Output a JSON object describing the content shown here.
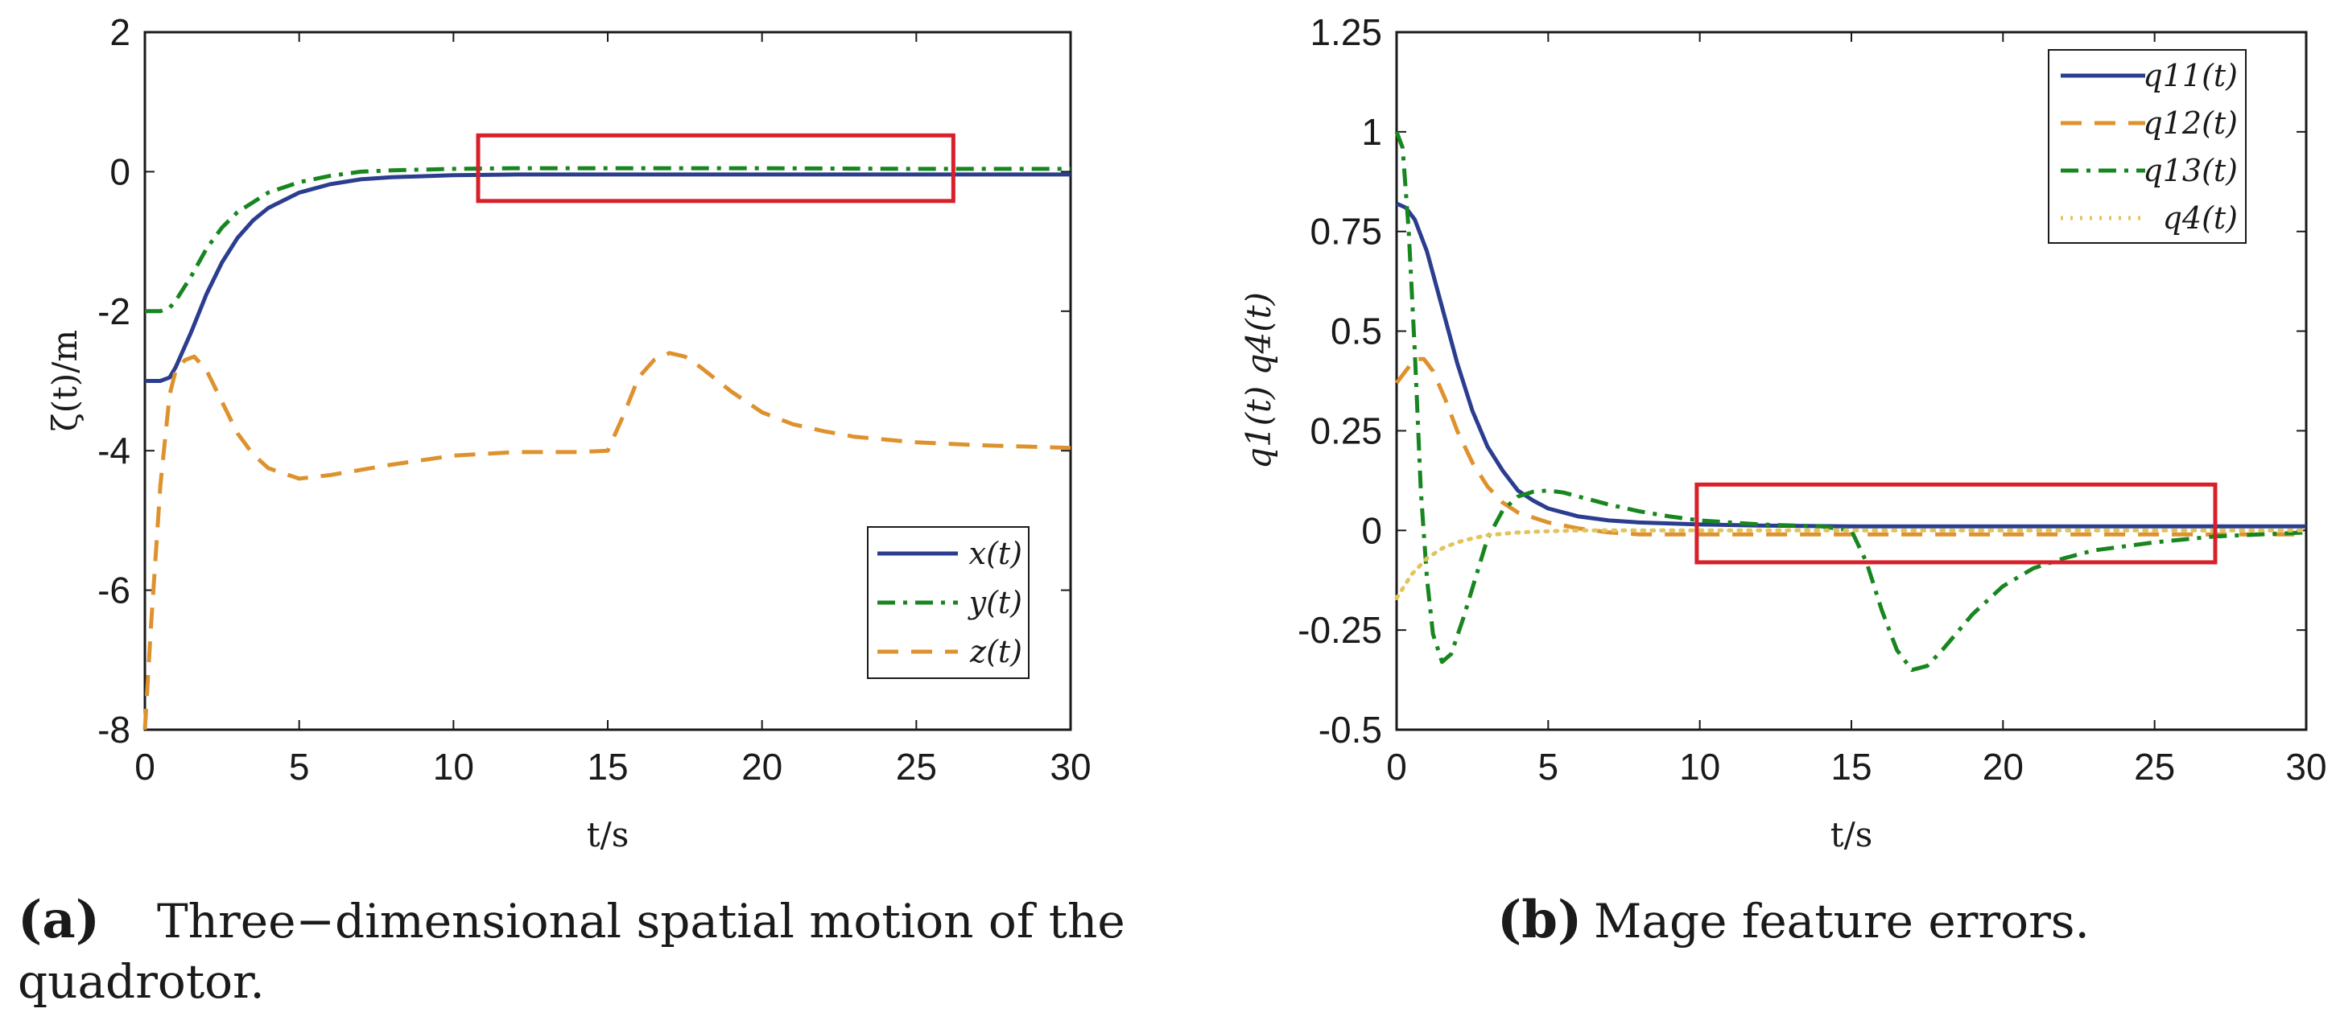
{
  "colors": {
    "blue": "#2b3d8f",
    "green": "#17861f",
    "orange": "#de922e",
    "yellow": "#e1c45c",
    "red": "#d9202a",
    "axis": "#1a1a1a"
  },
  "chart_data": [
    {
      "type": "line",
      "panel_letter": "(a)",
      "caption_line1": "Three−dimensional spatial motion of the",
      "caption_line2": "quadrotor.",
      "xlabel": "t/s",
      "ylabel": "ζ(t)/m",
      "xlim": [
        0,
        30
      ],
      "ylim": [
        -8,
        2
      ],
      "xticks": [
        0,
        5,
        10,
        15,
        20,
        25,
        30
      ],
      "yticks": [
        -8,
        -6,
        -4,
        -2,
        0,
        2
      ],
      "ytick_labels": [
        "-8",
        "-6",
        "-4",
        "-2",
        "0",
        "2"
      ],
      "highlight_box": {
        "x": [
          10.8,
          26.2
        ],
        "y": [
          -0.42,
          0.52
        ]
      },
      "legend_position": "lower-right",
      "series": [
        {
          "name": "x(t)",
          "style": "solid",
          "color": "#2b3d8f",
          "x": [
            0,
            0.5,
            0.8,
            1.0,
            1.5,
            2,
            2.5,
            3,
            3.5,
            4,
            5,
            6,
            7,
            8,
            10,
            12,
            15,
            20,
            25,
            30
          ],
          "y": [
            -3.0,
            -3.0,
            -2.95,
            -2.8,
            -2.3,
            -1.75,
            -1.3,
            -0.95,
            -0.7,
            -0.52,
            -0.3,
            -0.18,
            -0.11,
            -0.08,
            -0.05,
            -0.04,
            -0.04,
            -0.04,
            -0.04,
            -0.04
          ]
        },
        {
          "name": "y(t)",
          "style": "dashdot",
          "color": "#17861f",
          "x": [
            0,
            0.5,
            0.8,
            1.0,
            1.5,
            2,
            2.5,
            3,
            4,
            5,
            6,
            7,
            8,
            10,
            12,
            15,
            20,
            25,
            30
          ],
          "y": [
            -2.0,
            -2.0,
            -1.95,
            -1.85,
            -1.5,
            -1.1,
            -0.8,
            -0.58,
            -0.3,
            -0.15,
            -0.06,
            0.0,
            0.02,
            0.04,
            0.05,
            0.05,
            0.05,
            0.04,
            0.04
          ]
        },
        {
          "name": "z(t)",
          "style": "dashed",
          "color": "#de922e",
          "x": [
            0,
            0.2,
            0.5,
            0.8,
            1.0,
            1.3,
            1.6,
            2.0,
            2.5,
            3.0,
            3.5,
            4.0,
            5.0,
            6.0,
            8.0,
            10.0,
            12.0,
            14.0,
            15.0,
            15.5,
            16.0,
            16.5,
            17.0,
            17.5,
            18.0,
            19.0,
            20.0,
            21.0,
            22.0,
            23.0,
            25.0,
            27.0,
            30.0
          ],
          "y": [
            -8.0,
            -6.5,
            -4.5,
            -3.2,
            -2.85,
            -2.7,
            -2.65,
            -2.85,
            -3.3,
            -3.75,
            -4.05,
            -4.25,
            -4.4,
            -4.35,
            -4.2,
            -4.07,
            -4.02,
            -4.02,
            -4.0,
            -3.5,
            -2.95,
            -2.7,
            -2.6,
            -2.65,
            -2.8,
            -3.15,
            -3.45,
            -3.62,
            -3.72,
            -3.8,
            -3.88,
            -3.92,
            -3.96
          ]
        }
      ]
    },
    {
      "type": "line",
      "panel_letter": "(b)",
      "caption_line1": "Mage feature errors.",
      "xlabel": "t/s",
      "ylabel": "q1(t)   q4(t)",
      "xlim": [
        0,
        30
      ],
      "ylim": [
        -0.5,
        1.25
      ],
      "xticks": [
        0,
        5,
        10,
        15,
        20,
        25,
        30
      ],
      "yticks": [
        -0.5,
        -0.25,
        0,
        0.25,
        0.5,
        0.75,
        1,
        1.25
      ],
      "ytick_labels": [
        "-0.5",
        "-0.25",
        "0",
        "0.25",
        "0.5",
        "0.75",
        "1",
        "1.25"
      ],
      "highlight_box": {
        "x": [
          9.9,
          27.0
        ],
        "y": [
          -0.08,
          0.115
        ]
      },
      "legend_position": "top-right",
      "series": [
        {
          "name": "q11(t)",
          "style": "solid",
          "color": "#2b3d8f",
          "x": [
            0,
            0.3,
            0.6,
            1.0,
            1.5,
            2.0,
            2.5,
            3.0,
            3.5,
            4.0,
            4.5,
            5.0,
            6.0,
            7.0,
            8.0,
            10.0,
            12.0,
            15.0,
            20.0,
            25.0,
            30.0
          ],
          "y": [
            0.82,
            0.81,
            0.78,
            0.7,
            0.56,
            0.42,
            0.3,
            0.21,
            0.15,
            0.1,
            0.075,
            0.055,
            0.035,
            0.025,
            0.02,
            0.015,
            0.012,
            0.01,
            0.01,
            0.01,
            0.01
          ]
        },
        {
          "name": "q12(t)",
          "style": "dashed",
          "color": "#de922e",
          "x": [
            0,
            0.3,
            0.6,
            0.9,
            1.2,
            1.6,
            2.0,
            2.5,
            3.0,
            3.5,
            4.0,
            5.0,
            6.0,
            7.0,
            8.0,
            10.0,
            12.0,
            15.0,
            20.0,
            25.0,
            30.0
          ],
          "y": [
            0.37,
            0.4,
            0.43,
            0.43,
            0.4,
            0.33,
            0.25,
            0.17,
            0.11,
            0.07,
            0.045,
            0.02,
            0.005,
            -0.005,
            -0.01,
            -0.01,
            -0.01,
            -0.01,
            -0.01,
            -0.01,
            -0.01
          ]
        },
        {
          "name": "q13(t)",
          "style": "dashdot",
          "color": "#17861f",
          "x": [
            0,
            0.2,
            0.4,
            0.6,
            0.8,
            1.0,
            1.2,
            1.5,
            1.8,
            2.2,
            2.6,
            3.0,
            3.5,
            4.0,
            4.5,
            5.0,
            5.5,
            6.0,
            7.0,
            8.0,
            9.0,
            10.0,
            12.0,
            14.0,
            15.0,
            15.5,
            16.0,
            16.5,
            17.0,
            17.5,
            18.0,
            19.0,
            20.0,
            21.0,
            22.0,
            23.0,
            25.0,
            27.0,
            30.0
          ],
          "y": [
            1.0,
            0.96,
            0.75,
            0.45,
            0.1,
            -0.12,
            -0.26,
            -0.33,
            -0.31,
            -0.22,
            -0.12,
            -0.02,
            0.05,
            0.085,
            0.097,
            0.1,
            0.095,
            0.085,
            0.065,
            0.048,
            0.035,
            0.025,
            0.015,
            0.01,
            0.0,
            -0.08,
            -0.2,
            -0.3,
            -0.35,
            -0.34,
            -0.3,
            -0.21,
            -0.14,
            -0.095,
            -0.07,
            -0.05,
            -0.03,
            -0.015,
            -0.005
          ]
        },
        {
          "name": "q4(t)",
          "style": "dotted",
          "color": "#e1c45c",
          "x": [
            0,
            0.5,
            1.0,
            1.5,
            2.0,
            2.5,
            3.0,
            4.0,
            5.0,
            6.0,
            8.0,
            10.0,
            15.0,
            20.0,
            25.0,
            30.0
          ],
          "y": [
            -0.17,
            -0.11,
            -0.07,
            -0.045,
            -0.03,
            -0.02,
            -0.012,
            -0.005,
            -0.002,
            0.0,
            0.0,
            0.0,
            0.0,
            0.0,
            0.0,
            0.0
          ]
        }
      ]
    }
  ]
}
